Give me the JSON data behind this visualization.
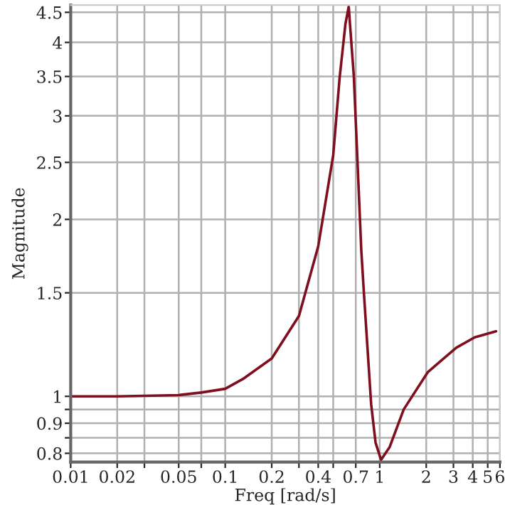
{
  "chart_data": {
    "type": "line",
    "xlabel": "Freq [rad/s]",
    "ylabel": "Magnitude",
    "log": "xy",
    "grid": true,
    "marker": "none",
    "line_style": "solid",
    "xlim": [
      0.01,
      6
    ],
    "ylim": [
      0.773,
      4.63
    ],
    "xticks": [
      0.01,
      0.02,
      {
        "value": 0.03,
        "label": null
      },
      0.05,
      {
        "value": 0.07,
        "label": null
      },
      0.1,
      0.2,
      {
        "value": 0.3,
        "label": null
      },
      0.4,
      {
        "value": 0.5,
        "label": null
      },
      0.7,
      1,
      2,
      3,
      4,
      5,
      6
    ],
    "yticks": [
      0.8,
      {
        "value": 0.85,
        "label": null
      },
      0.9,
      {
        "value": 0.95,
        "label": null
      },
      1,
      1.5,
      2,
      2.5,
      3,
      3.5,
      4,
      4.5
    ],
    "series": [
      {
        "color": "#7f0f1f",
        "x": [
          0.01,
          0.02,
          0.05,
          0.07,
          0.1,
          0.13,
          0.2,
          0.3,
          0.4,
          0.5,
          0.55,
          0.6,
          0.63,
          0.68,
          0.76,
          0.79,
          0.88,
          0.94,
          1.02,
          1.16,
          1.43,
          2.05,
          3.13,
          4.12,
          5.66
        ],
        "values": [
          1.0,
          1.0,
          1.005,
          1.015,
          1.03,
          1.07,
          1.16,
          1.37,
          1.8,
          2.57,
          3.48,
          4.3,
          4.6,
          3.5,
          1.77,
          1.5,
          0.97,
          0.834,
          0.78,
          0.82,
          0.95,
          1.1,
          1.21,
          1.26,
          1.29
        ]
      }
    ]
  }
}
